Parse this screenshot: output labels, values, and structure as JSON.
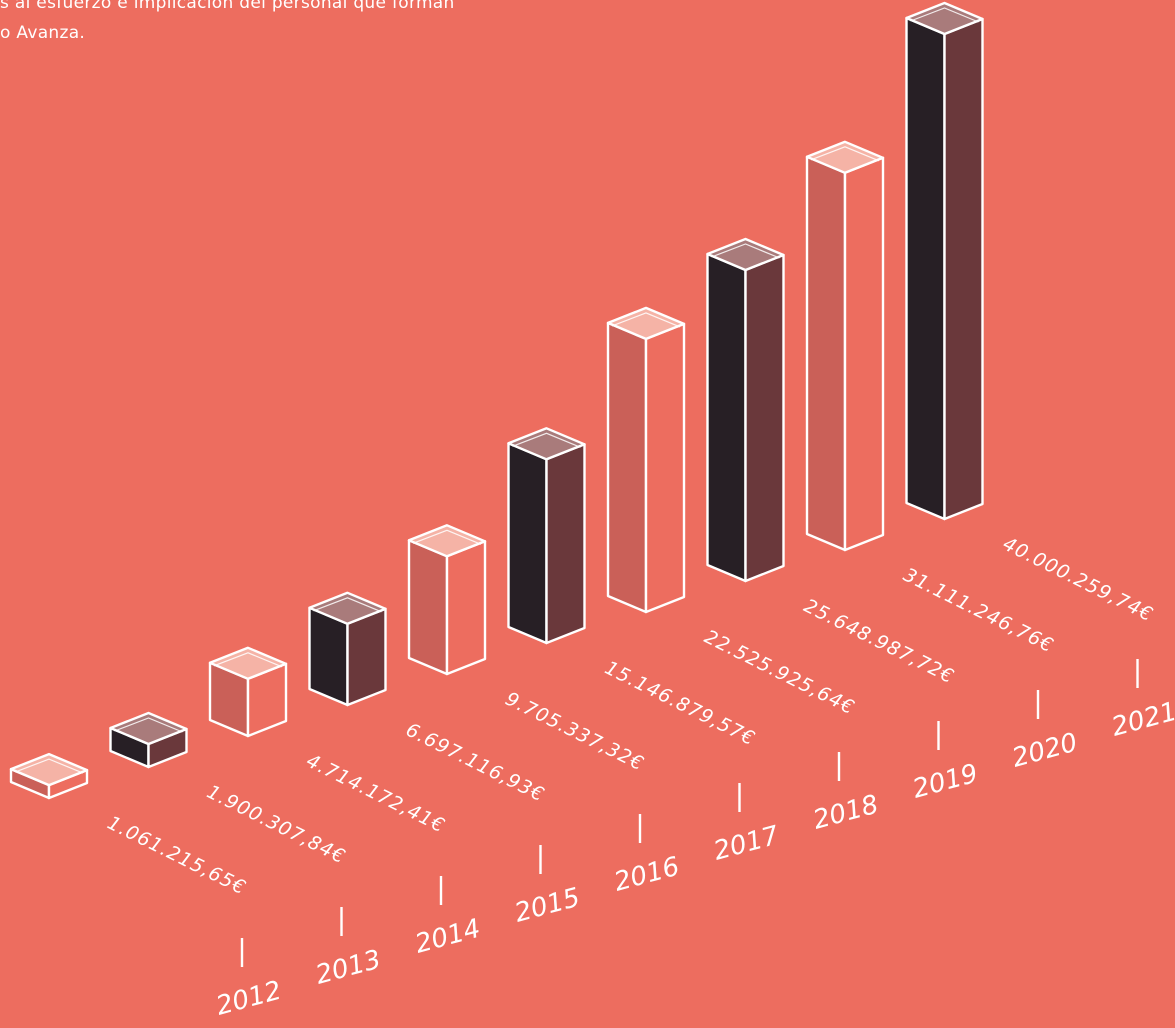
{
  "intro": {
    "line1": "s al esfuerzo e implicación del personal que forman",
    "line2": "o Avanza."
  },
  "colors": {
    "background": "#ED6D5F",
    "light_left": "#CA6058",
    "light_right": "#ED6D5F",
    "light_top": "#F5B3A6",
    "dark_left": "#271F25",
    "dark_right": "#6A383B",
    "dark_top": "#A97B7B",
    "stroke": "#FFFFFF"
  },
  "chart_data": {
    "type": "bar",
    "style": "3d-isometric",
    "categories": [
      "2012",
      "2013",
      "2014",
      "2015",
      "2016",
      "2017",
      "2018",
      "2019",
      "2020",
      "2021"
    ],
    "values": [
      1061215.65,
      1900307.84,
      4714172.41,
      6697116.93,
      9705337.32,
      15146879.57,
      22525925.64,
      25648987.72,
      31111246.76,
      40000259.74
    ],
    "value_labels": [
      "1.061.215,65€",
      "1.900.307,84€",
      "4.714.172,41€",
      "6.697.116,93€",
      "9.705.337,32€",
      "15.146.879,57€",
      "22.525.925,64€",
      "25.648.987,72€",
      "31.111.246,76€",
      "40.000.259,74€"
    ],
    "bar_styles": [
      "light",
      "dark",
      "light",
      "dark",
      "light",
      "dark",
      "light",
      "dark",
      "light",
      "dark"
    ],
    "title": "",
    "xlabel": "",
    "ylabel": "",
    "grid": false,
    "legend": "none"
  }
}
